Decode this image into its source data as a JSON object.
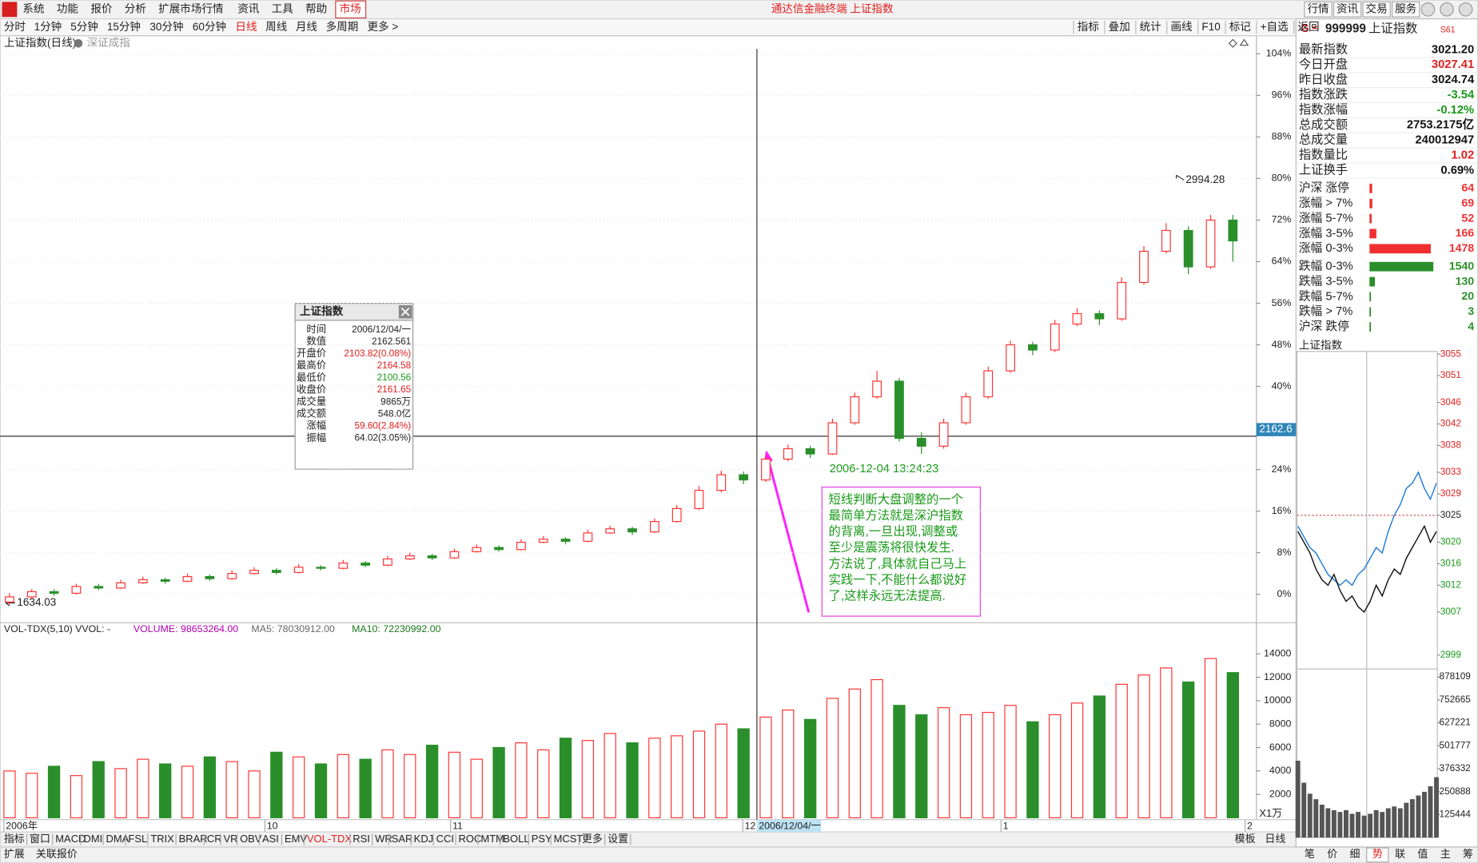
{
  "title_bar": {
    "menus": [
      "系统",
      "功能",
      "报价",
      "分析",
      "扩展市场行情",
      "资讯",
      "工具",
      "帮助"
    ],
    "market": "市场",
    "title": "通达信金融终端 上证指数",
    "buttons": [
      "行情",
      "资讯",
      "交易",
      "服务"
    ]
  },
  "toolbar": {
    "periods": [
      "分时",
      "1分钟",
      "5分钟",
      "15分钟",
      "30分钟",
      "60分钟",
      "日线",
      "周线",
      "月线",
      "多周期",
      "更多 >"
    ],
    "active_period": 6,
    "tools": [
      "指标",
      "叠加",
      "统计",
      "画线",
      "F10",
      "标记",
      "+自选",
      "返回"
    ]
  },
  "chart_data": [
    {
      "type": "candlestick",
      "title": "上证指数(日线)",
      "overlay": "深证成指",
      "up_color": "#ff3232",
      "down_color": "#2a8f2a",
      "ohlc": [
        [
          -1.5,
          0.2,
          -2,
          -0.5
        ],
        [
          -0.5,
          1.0,
          -1.0,
          0.5
        ],
        [
          0.5,
          1.0,
          -0.3,
          0.2
        ],
        [
          0.2,
          2.0,
          0,
          1.5
        ],
        [
          1.5,
          2.0,
          0.8,
          1.2
        ],
        [
          1.2,
          2.8,
          1.0,
          2.2
        ],
        [
          2.2,
          3.4,
          2.0,
          2.8
        ],
        [
          2.8,
          3.2,
          2.0,
          2.5
        ],
        [
          2.5,
          4.0,
          2.3,
          3.4
        ],
        [
          3.4,
          3.8,
          2.6,
          3.0
        ],
        [
          3.0,
          4.6,
          2.8,
          4.0
        ],
        [
          4.0,
          5.2,
          3.8,
          4.6
        ],
        [
          4.6,
          5.0,
          3.8,
          4.2
        ],
        [
          4.2,
          5.8,
          4.0,
          5.2
        ],
        [
          5.2,
          5.6,
          4.6,
          5.0
        ],
        [
          5.0,
          6.6,
          4.8,
          6.0
        ],
        [
          6.0,
          6.4,
          5.2,
          5.6
        ],
        [
          5.6,
          7.4,
          5.4,
          6.8
        ],
        [
          6.8,
          8.0,
          6.6,
          7.4
        ],
        [
          7.4,
          7.8,
          6.6,
          7.0
        ],
        [
          7.0,
          8.8,
          6.8,
          8.2
        ],
        [
          8.2,
          9.6,
          8.0,
          9.0
        ],
        [
          9.0,
          9.4,
          8.2,
          8.6
        ],
        [
          8.6,
          10.6,
          8.4,
          10.0
        ],
        [
          10.0,
          11.2,
          9.8,
          10.6
        ],
        [
          10.6,
          11.0,
          9.6,
          10.2
        ],
        [
          10.2,
          12.4,
          10.0,
          11.8
        ],
        [
          11.8,
          13.2,
          11.6,
          12.6
        ],
        [
          12.6,
          13.0,
          11.4,
          12.0
        ],
        [
          12.0,
          14.6,
          11.8,
          14.0
        ],
        [
          14.0,
          17.2,
          13.8,
          16.5
        ],
        [
          16.5,
          20.8,
          16.2,
          20.0
        ],
        [
          20.0,
          23.8,
          19.6,
          23.0
        ],
        [
          23.0,
          23.6,
          21.2,
          22.0
        ],
        [
          22.0,
          26.8,
          21.6,
          26.0
        ],
        [
          26.0,
          28.8,
          25.6,
          28.0
        ],
        [
          28.0,
          28.6,
          26.2,
          27.0
        ],
        [
          27.0,
          33.8,
          26.8,
          33.0
        ],
        [
          33.0,
          38.8,
          32.6,
          38.0
        ],
        [
          38.0,
          43.0,
          37.6,
          41.0
        ],
        [
          41.0,
          41.6,
          29.4,
          30.0
        ],
        [
          30.0,
          31.2,
          27.0,
          28.5
        ],
        [
          28.5,
          33.8,
          28.0,
          33.0
        ],
        [
          33.0,
          38.8,
          32.6,
          38.0
        ],
        [
          38.0,
          43.8,
          37.6,
          43.0
        ],
        [
          43.0,
          48.8,
          42.6,
          48.0
        ],
        [
          48.0,
          48.6,
          46.0,
          47.0
        ],
        [
          47.0,
          52.8,
          46.6,
          52.0
        ],
        [
          52.0,
          55.0,
          51.6,
          54.0
        ],
        [
          54.0,
          54.6,
          51.8,
          53.0
        ],
        [
          53.0,
          61.0,
          52.6,
          60.0
        ],
        [
          60.0,
          67.0,
          59.6,
          66.0
        ],
        [
          66.0,
          71.4,
          65.6,
          70.0
        ],
        [
          70.0,
          70.8,
          61.6,
          63.0
        ],
        [
          63.0,
          73.0,
          62.6,
          72.0
        ],
        [
          72.0,
          73.0,
          64.0,
          68.0
        ]
      ],
      "ylim": [
        -5.3,
        107.1
      ],
      "yticks": [
        {
          "value": 0,
          "label": "0%"
        },
        {
          "value": 8,
          "label": "8%"
        },
        {
          "value": 16,
          "label": "16%"
        },
        {
          "value": 24,
          "label": "24%"
        },
        {
          "value": 40,
          "label": "40%"
        },
        {
          "value": 48,
          "label": "48%"
        },
        {
          "value": 56,
          "label": "56%"
        },
        {
          "value": 64,
          "label": "64%"
        },
        {
          "value": 72,
          "label": "72%"
        },
        {
          "value": 80,
          "label": "80%"
        },
        {
          "value": 88,
          "label": "88%"
        },
        {
          "value": 96,
          "label": "96%"
        },
        {
          "value": 104,
          "label": "104%"
        }
      ],
      "grid": true,
      "low_label": "1634.03",
      "high_label": "2994.28",
      "cursor_value": "2162.6",
      "cursor_time": "2006-12-04 13:24:23",
      "x_labels": [
        "2006年",
        "10",
        "11",
        "12",
        "1",
        "2"
      ],
      "cursor_date": "2006/12/04/一"
    },
    {
      "type": "bar",
      "header": [
        "VOL-TDX(5,10) VVOL: -",
        "VOLUME: 98653264.00",
        "MA5: 78030912.00",
        "MA10: 72230992.00"
      ],
      "header_colors": [
        "#222",
        "#b000b0",
        "#666",
        "#1a7a1a"
      ],
      "values": [
        4000,
        3800,
        4400,
        3600,
        4800,
        4200,
        5000,
        4600,
        4400,
        5200,
        4800,
        4000,
        5600,
        5200,
        4600,
        5400,
        5000,
        5800,
        5400,
        6200,
        5600,
        5000,
        6000,
        6400,
        5800,
        6800,
        6600,
        7200,
        6400,
        6800,
        7000,
        7400,
        8000,
        7600,
        8600,
        9200,
        8400,
        10200,
        11000,
        11800,
        9600,
        8800,
        9400,
        8800,
        9000,
        9600,
        8200,
        8800,
        9800,
        10400,
        11400,
        12200,
        12800,
        11600,
        13600,
        12400
      ],
      "ylim": [
        0,
        15450
      ],
      "yticks": [
        2000,
        4000,
        6000,
        8000,
        10000,
        12000,
        14000
      ],
      "unit": "X1万"
    },
    {
      "type": "line",
      "title": "上证指数",
      "price_color": "#111",
      "average_color": "#1e7ad6",
      "price": [
        3022,
        3020,
        3018,
        3015,
        3013,
        3012,
        3014,
        3011,
        3009,
        3010,
        3008,
        3007,
        3009,
        3012,
        3010,
        3013,
        3015,
        3014,
        3017,
        3019,
        3021,
        3023,
        3020,
        3022
      ],
      "average": [
        3023,
        3021,
        3019,
        3018,
        3016,
        3014,
        3013,
        3012,
        3013,
        3012,
        3014,
        3015,
        3017,
        3019,
        3018,
        3022,
        3025,
        3027,
        3030,
        3031,
        3033,
        3030,
        3028,
        3031
      ],
      "volume": [
        420000,
        300000,
        240000,
        210000,
        180000,
        160000,
        150000,
        140000,
        150000,
        130000,
        140000,
        120000,
        130000,
        150000,
        140000,
        160000,
        170000,
        160000,
        190000,
        210000,
        230000,
        250000,
        280000,
        330000
      ],
      "ylim": [
        2997.3,
        3055.5
      ],
      "yticks": [
        2999,
        3007,
        3012,
        3016,
        3020,
        3025,
        3029,
        3033,
        3038,
        3042,
        3046,
        3051,
        3055
      ],
      "vol_ylim": [
        0,
        921600
      ],
      "vol_yticks": [
        125444,
        250888,
        376332,
        501777,
        627221,
        752665,
        878109
      ]
    }
  ],
  "tooltip": {
    "title": "上证指数",
    "rows": [
      [
        "时间",
        "2006/12/04/一",
        "#222"
      ],
      [
        "数值",
        "2162.561",
        "#222"
      ],
      [
        "开盘价",
        "2103.82(0.08%)",
        "#e02020"
      ],
      [
        "最高价",
        "2164.58",
        "#e02020"
      ],
      [
        "最低价",
        "2100.56",
        "#1a9a1a"
      ],
      [
        "收盘价",
        "2161.65",
        "#e02020"
      ],
      [
        "成交量",
        "9865万",
        "#222"
      ],
      [
        "成交额",
        "548.0亿",
        "#222"
      ],
      [
        "涨幅",
        "59.60(2.84%)",
        "#e02020"
      ],
      [
        "振幅",
        "64.02(3.05%)",
        "#222"
      ]
    ]
  },
  "annotation": {
    "lines": [
      "短线判断大盘调整的一个",
      "最简单方法就是深沪指数",
      "的背离,一旦出现,调整或",
      "至少是震荡将很快发生.",
      "方法说了,具体就自己马上",
      "实践一下,不能什么都说好",
      "了,这样永远无法提高."
    ]
  },
  "quote": {
    "code": "999999",
    "name": "上证指数",
    "tag": "S61",
    "rows": [
      [
        "最新指数",
        "3021.20",
        "#111"
      ],
      [
        "今日开盘",
        "3027.41",
        "#e02020"
      ],
      [
        "昨日收盘",
        "3024.74",
        "#111"
      ],
      [
        "指数涨跌",
        "-3.54",
        "#1a9a1a"
      ],
      [
        "指数涨幅",
        "-0.12%",
        "#1a9a1a"
      ],
      [
        "总成交额",
        "2753.2175亿",
        "#111"
      ],
      [
        "总成交量",
        "240012947",
        "#111"
      ],
      [
        "指数量比",
        "1.02",
        "#e02020"
      ],
      [
        "上证换手",
        "0.69%",
        "#111"
      ]
    ]
  },
  "breadth": {
    "labels": [
      "沪深 涨停",
      "涨幅 > 7%",
      "涨幅 5-7%",
      "涨幅 3-5%",
      "涨幅 0-3%",
      "跌幅 0-3%",
      "跌幅 3-5%",
      "跌幅 5-7%",
      "跌幅 > 7%",
      "沪深 跌停"
    ],
    "counts": [
      64,
      69,
      52,
      166,
      1478,
      1540,
      130,
      20,
      3,
      4
    ],
    "rise_rows": 5
  },
  "indicator_tabs": {
    "tabs": [
      "指标",
      "窗口",
      "MACD",
      "DMI",
      "DMA",
      "FSL",
      "TRIX",
      "BRAR",
      "CR",
      "VR",
      "OBV",
      "ASI",
      "EMV",
      "VOL-TDX",
      "RSI",
      "WR",
      "SAR",
      "KDJ",
      "CCI",
      "ROC",
      "MTM",
      "BOLL",
      "PSY",
      "MCST",
      "更多",
      "设置"
    ],
    "active": 13,
    "right": [
      "模板",
      "日线"
    ]
  },
  "footer": {
    "tabs": [
      "扩展",
      "关联报价"
    ],
    "side": [
      "笔",
      "价",
      "细",
      "势",
      "联",
      "值",
      "主",
      "筹"
    ],
    "side_active": 3
  }
}
